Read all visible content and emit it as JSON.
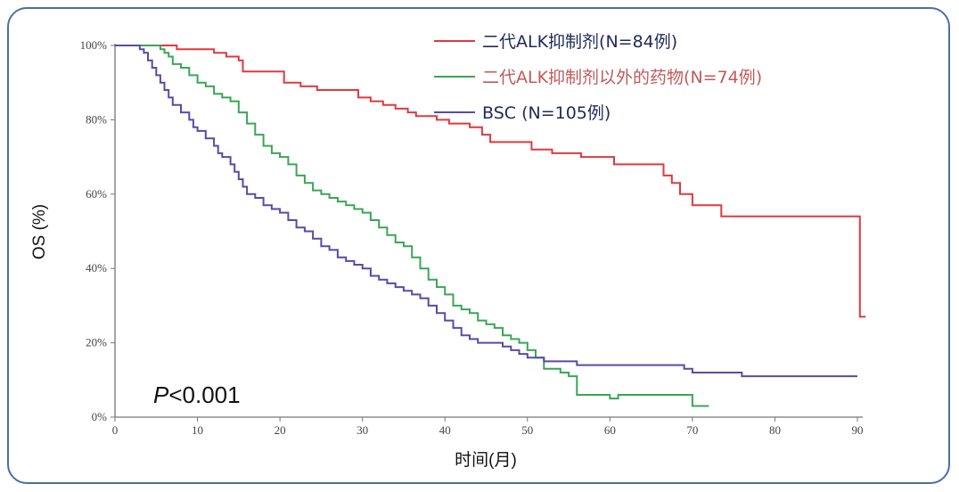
{
  "chart_data": {
    "type": "line",
    "subtype": "kaplan-meier",
    "xlabel": "时间(月)",
    "ylabel": "OS (%)",
    "xlim": [
      0,
      90
    ],
    "ylim": [
      0,
      100
    ],
    "xticks": [
      "0",
      "10",
      "20",
      "30",
      "40",
      "50",
      "60",
      "70",
      "80",
      "90"
    ],
    "yticks": [
      "0%",
      "20%",
      "40%",
      "60%",
      "80%",
      "100%"
    ],
    "grid": false,
    "legend_position": "top-right",
    "annotation": {
      "p_label": "P",
      "p_rest": "<0.001"
    },
    "series": [
      {
        "name": "二代ALK抑制剂(N=84例)",
        "color": "#e0393e",
        "legend_text_color": "#1f2a5a",
        "points": [
          [
            0,
            100
          ],
          [
            7,
            100
          ],
          [
            7.5,
            99
          ],
          [
            11,
            99
          ],
          [
            12,
            98
          ],
          [
            13,
            98
          ],
          [
            13.5,
            97
          ],
          [
            14,
            97
          ],
          [
            15,
            96
          ],
          [
            15.5,
            93
          ],
          [
            20,
            93
          ],
          [
            20.5,
            90
          ],
          [
            22,
            90
          ],
          [
            22.5,
            89
          ],
          [
            24,
            89
          ],
          [
            24.5,
            88
          ],
          [
            29,
            88
          ],
          [
            29.5,
            86
          ],
          [
            30.5,
            86
          ],
          [
            31,
            85
          ],
          [
            32,
            85
          ],
          [
            32.5,
            84
          ],
          [
            33.5,
            84
          ],
          [
            34,
            83
          ],
          [
            35,
            83
          ],
          [
            35.5,
            82
          ],
          [
            36,
            82
          ],
          [
            36.5,
            81
          ],
          [
            38.5,
            81
          ],
          [
            39,
            80
          ],
          [
            40,
            80
          ],
          [
            40.5,
            79
          ],
          [
            42.5,
            79
          ],
          [
            43,
            78
          ],
          [
            44,
            78
          ],
          [
            44.5,
            76
          ],
          [
            45,
            76
          ],
          [
            45.5,
            74
          ],
          [
            50,
            74
          ],
          [
            50.5,
            72
          ],
          [
            52.5,
            72
          ],
          [
            53,
            71
          ],
          [
            56,
            71
          ],
          [
            56.5,
            70
          ],
          [
            60,
            70
          ],
          [
            60.5,
            68
          ],
          [
            66,
            68
          ],
          [
            66.5,
            65
          ],
          [
            67,
            65
          ],
          [
            67.5,
            63
          ],
          [
            68,
            63
          ],
          [
            68.5,
            60
          ],
          [
            69.5,
            60
          ],
          [
            70,
            57
          ],
          [
            73,
            57
          ],
          [
            73.5,
            54
          ],
          [
            90,
            54
          ],
          [
            90.3,
            27
          ],
          [
            91,
            27
          ]
        ]
      },
      {
        "name": "二代ALK抑制剂以外的药物(N=74例)",
        "color": "#3aa655",
        "legend_text_color": "#c05a5a",
        "points": [
          [
            0,
            100
          ],
          [
            5,
            100
          ],
          [
            5.5,
            99
          ],
          [
            6,
            98
          ],
          [
            6.5,
            97
          ],
          [
            7,
            95
          ],
          [
            8,
            94
          ],
          [
            9,
            92
          ],
          [
            10,
            90
          ],
          [
            11,
            89
          ],
          [
            12,
            87
          ],
          [
            13,
            86
          ],
          [
            14,
            85
          ],
          [
            15,
            82
          ],
          [
            16,
            79
          ],
          [
            17,
            76
          ],
          [
            18,
            73
          ],
          [
            19,
            71
          ],
          [
            20,
            70
          ],
          [
            21,
            68
          ],
          [
            22,
            65
          ],
          [
            23,
            63
          ],
          [
            24,
            61
          ],
          [
            25,
            60
          ],
          [
            26,
            59
          ],
          [
            27,
            58
          ],
          [
            28,
            57
          ],
          [
            29,
            56
          ],
          [
            30,
            55
          ],
          [
            31,
            53
          ],
          [
            32,
            51
          ],
          [
            33,
            49
          ],
          [
            34,
            47
          ],
          [
            35,
            46
          ],
          [
            36,
            43
          ],
          [
            37,
            40
          ],
          [
            38,
            37
          ],
          [
            39,
            35
          ],
          [
            40,
            33
          ],
          [
            41,
            30
          ],
          [
            42,
            29
          ],
          [
            43,
            28
          ],
          [
            44,
            26
          ],
          [
            45,
            25
          ],
          [
            46,
            24
          ],
          [
            47,
            22
          ],
          [
            48,
            21
          ],
          [
            49,
            20
          ],
          [
            50,
            18
          ],
          [
            51,
            16
          ],
          [
            52,
            13
          ],
          [
            54,
            12
          ],
          [
            55,
            11
          ],
          [
            56,
            6
          ],
          [
            58,
            6
          ],
          [
            60,
            5
          ],
          [
            61,
            6
          ],
          [
            64,
            6
          ],
          [
            69,
            6
          ],
          [
            70,
            3
          ],
          [
            72,
            3
          ]
        ]
      },
      {
        "name": "BSC (N=105例)",
        "color": "#5a4aa6",
        "legend_text_color": "#1f2a5a",
        "points": [
          [
            0,
            100
          ],
          [
            2.5,
            100
          ],
          [
            3,
            99
          ],
          [
            3.5,
            98
          ],
          [
            4,
            96
          ],
          [
            4.5,
            94
          ],
          [
            5,
            92
          ],
          [
            5.5,
            90
          ],
          [
            6,
            88
          ],
          [
            6.5,
            86
          ],
          [
            7,
            84
          ],
          [
            8,
            82
          ],
          [
            9,
            80
          ],
          [
            9.5,
            78
          ],
          [
            10,
            77
          ],
          [
            11,
            75
          ],
          [
            12,
            73
          ],
          [
            12.5,
            71
          ],
          [
            13,
            70
          ],
          [
            14,
            68
          ],
          [
            14.5,
            66
          ],
          [
            15,
            64
          ],
          [
            15.5,
            62
          ],
          [
            16,
            60
          ],
          [
            17,
            59
          ],
          [
            18,
            57
          ],
          [
            19,
            56
          ],
          [
            20,
            55
          ],
          [
            21,
            53
          ],
          [
            22,
            51
          ],
          [
            23,
            50
          ],
          [
            24,
            48
          ],
          [
            25,
            46
          ],
          [
            26,
            45
          ],
          [
            27,
            43
          ],
          [
            28,
            42
          ],
          [
            29,
            41
          ],
          [
            30,
            40
          ],
          [
            31,
            38
          ],
          [
            32,
            37
          ],
          [
            33,
            36
          ],
          [
            34,
            35
          ],
          [
            35,
            34
          ],
          [
            36,
            33
          ],
          [
            37,
            32
          ],
          [
            38,
            30
          ],
          [
            39,
            28
          ],
          [
            40,
            26
          ],
          [
            41,
            24
          ],
          [
            42,
            22
          ],
          [
            43,
            21
          ],
          [
            44,
            20
          ],
          [
            46,
            20
          ],
          [
            47,
            19
          ],
          [
            48,
            18
          ],
          [
            49,
            17
          ],
          [
            50,
            16
          ],
          [
            52,
            15
          ],
          [
            54,
            15
          ],
          [
            56,
            14
          ],
          [
            68,
            14
          ],
          [
            69,
            13
          ],
          [
            70,
            12
          ],
          [
            75,
            12
          ],
          [
            76,
            11
          ],
          [
            90,
            11
          ]
        ]
      }
    ]
  }
}
